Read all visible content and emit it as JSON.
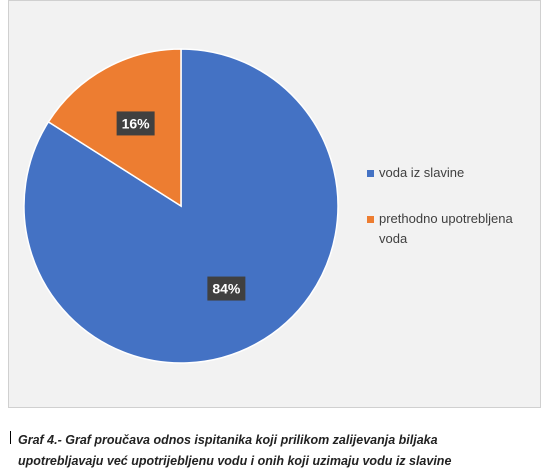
{
  "chart_data": {
    "type": "pie",
    "categories": [
      "voda iz slavine",
      "prethodno upotrebljena voda"
    ],
    "values": [
      84,
      16
    ],
    "value_labels": [
      "84%",
      "16%"
    ],
    "colors": [
      "#4472c4",
      "#ed7d31"
    ]
  },
  "caption": "Graf 4.- Graf proučava odnos ispitanika koji prilikom zalijevanja biljaka upotrebljavaju već upotrijebljenu vodu i onih koji uzimaju vodu iz slavine"
}
